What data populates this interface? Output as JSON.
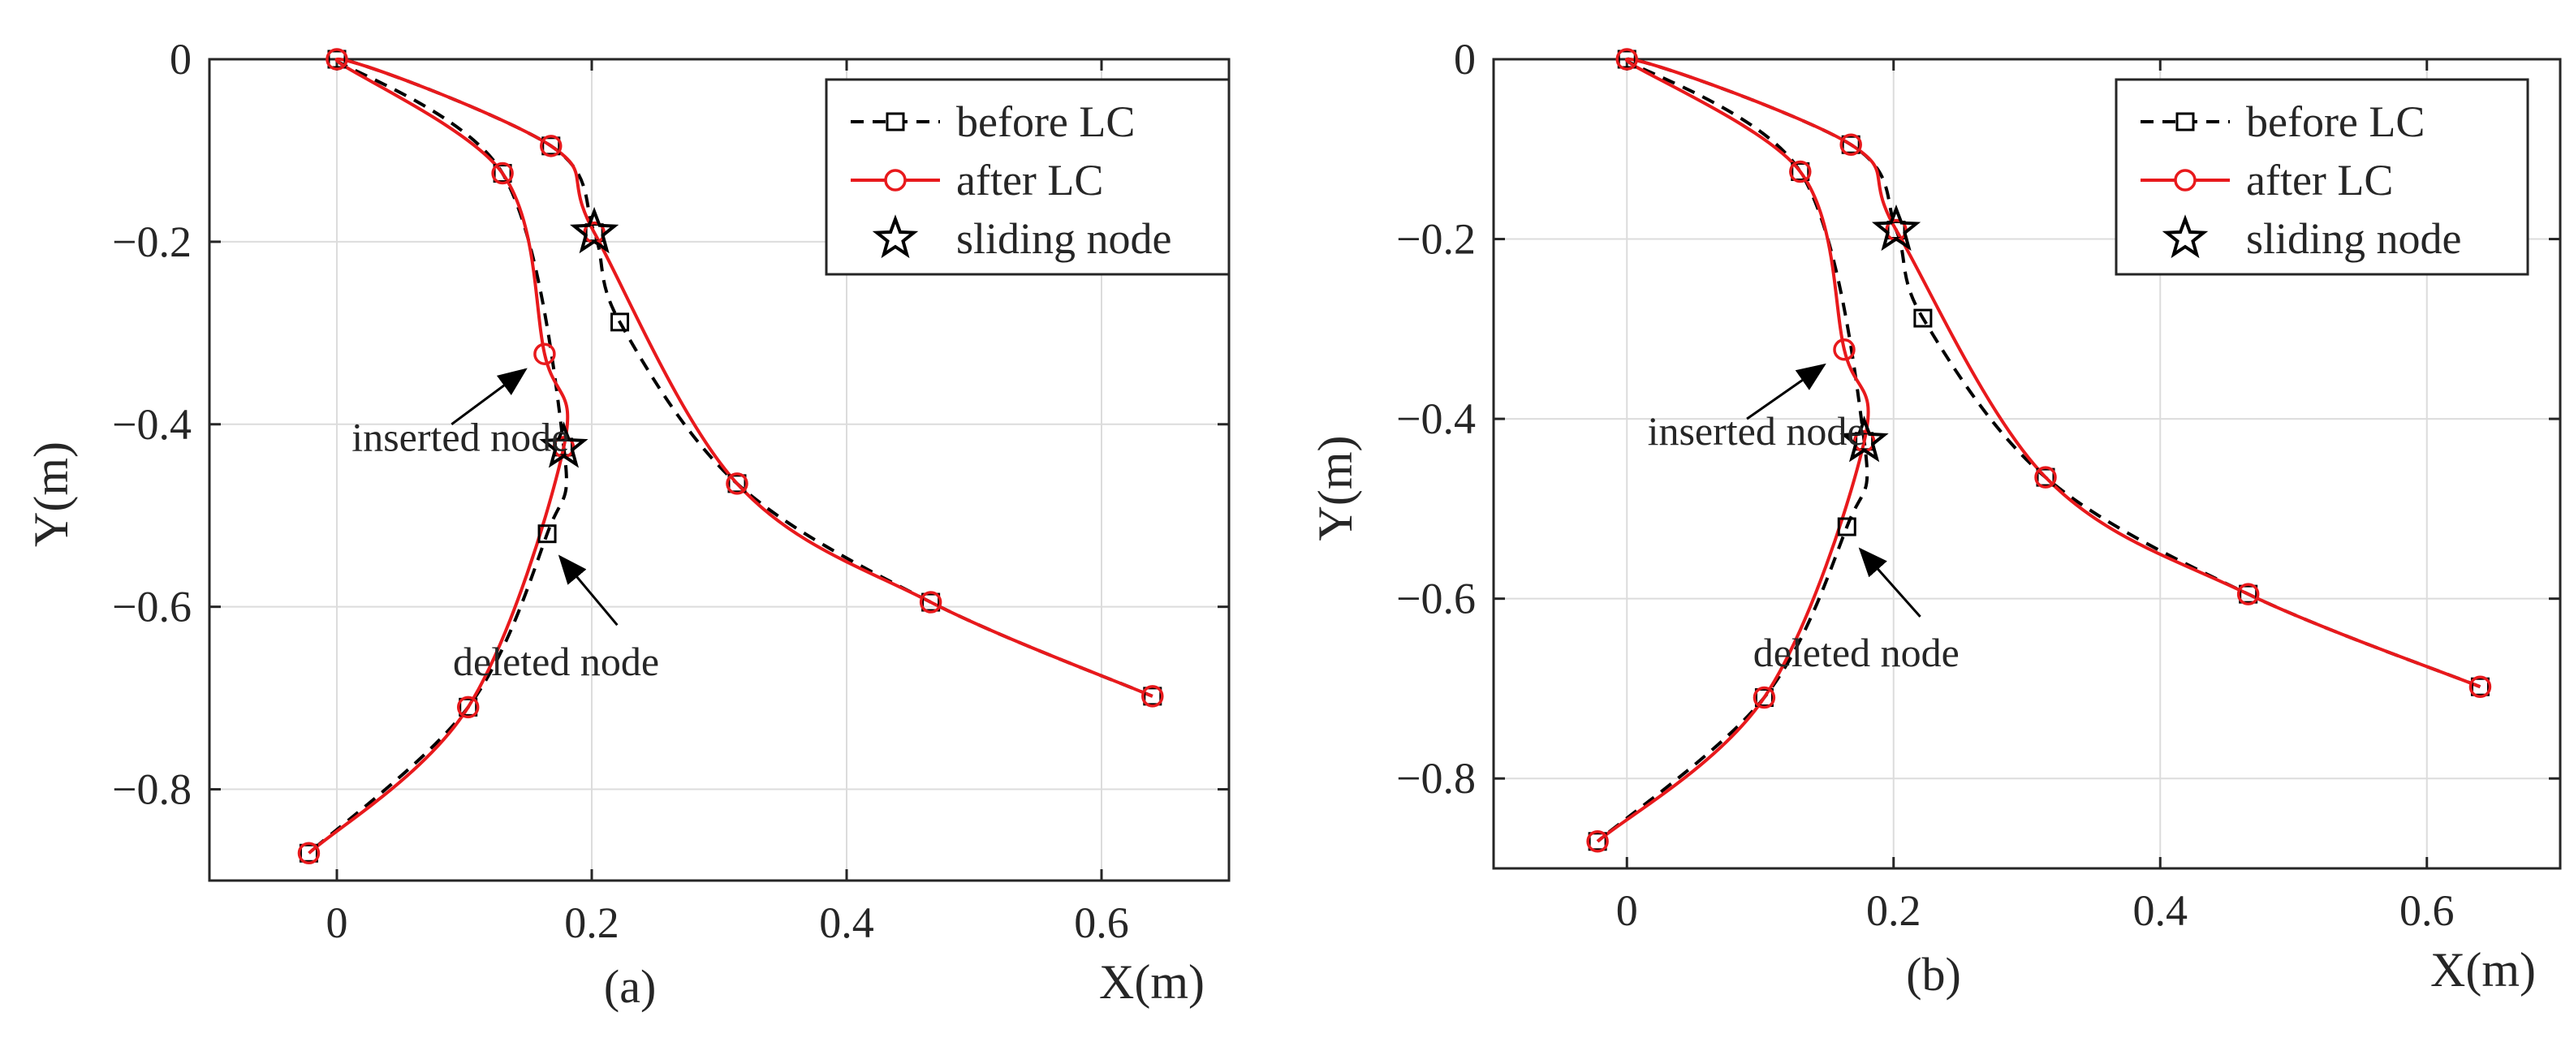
{
  "chart_data": [
    {
      "type": "line",
      "panel_label": "(a)",
      "xlabel": "X(m)",
      "ylabel": "Y(m)",
      "xlim": [
        -0.1,
        0.7
      ],
      "ylim": [
        -0.9,
        0
      ],
      "grid": true,
      "x_ticks": [
        0,
        0.2,
        0.4,
        0.6
      ],
      "x_tick_labels": [
        "0",
        "0.2",
        "0.4",
        "0.6"
      ],
      "y_ticks": [
        0,
        -0.2,
        -0.4,
        -0.6,
        -0.8
      ],
      "y_tick_labels": [
        "0",
        "−0.2",
        "−0.4",
        "−0.6",
        "−0.8"
      ],
      "legend_position": "top-right",
      "legend": [
        "before LC",
        "after LC",
        "sliding node"
      ],
      "series": [
        {
          "name": "before LC",
          "style": "dashed",
          "marker": "square",
          "color": "#000000",
          "points": [
            [
              0.64,
              -0.698
            ],
            [
              0.466,
              -0.595
            ],
            [
              0.314,
              -0.465
            ],
            [
              0.222,
              -0.288
            ],
            [
              0.202,
              -0.19
            ],
            [
              0.168,
              -0.095
            ],
            [
              0,
              0
            ],
            [
              0.13,
              -0.125
            ],
            [
              0.178,
              -0.425
            ],
            [
              0.165,
              -0.52
            ],
            [
              0.103,
              -0.71
            ],
            [
              -0.022,
              -0.87
            ]
          ]
        },
        {
          "name": "after LC",
          "style": "solid",
          "marker": "circle",
          "color": "#e8191c",
          "points": [
            [
              0.64,
              -0.698
            ],
            [
              0.466,
              -0.595
            ],
            [
              0.314,
              -0.465
            ],
            [
              0.202,
              -0.19
            ],
            [
              0.168,
              -0.095
            ],
            [
              0,
              0
            ],
            [
              0.13,
              -0.125
            ],
            [
              0.163,
              -0.323
            ],
            [
              0.178,
              -0.425
            ],
            [
              0.103,
              -0.71
            ],
            [
              -0.022,
              -0.87
            ]
          ]
        },
        {
          "name": "sliding node",
          "style": "none",
          "marker": "star",
          "color": "#000000",
          "points": [
            [
              0.202,
              -0.19
            ],
            [
              0.178,
              -0.425
            ]
          ]
        }
      ],
      "annotations": [
        {
          "text": "inserted node",
          "x": 0.097,
          "y": -0.429,
          "arrow_tip": [
            0.148,
            -0.34
          ],
          "arrow_tail": [
            0.09,
            -0.4
          ]
        },
        {
          "text": "deleted node",
          "x": 0.172,
          "y": -0.675,
          "arrow_tip": [
            0.175,
            -0.545
          ],
          "arrow_tail": [
            0.22,
            -0.62
          ]
        }
      ]
    },
    {
      "type": "line",
      "panel_label": "(b)",
      "xlabel": "X(m)",
      "ylabel": "Y(m)",
      "xlim": [
        -0.1,
        0.7
      ],
      "ylim": [
        -0.9,
        0
      ],
      "grid": true,
      "x_ticks": [
        0,
        0.2,
        0.4,
        0.6
      ],
      "x_tick_labels": [
        "0",
        "0.2",
        "0.4",
        "0.6"
      ],
      "y_ticks": [
        0,
        -0.2,
        -0.4,
        -0.6,
        -0.8
      ],
      "y_tick_labels": [
        "0",
        "−0.2",
        "−0.4",
        "−0.6",
        "−0.8"
      ],
      "legend_position": "top-right",
      "legend": [
        "before LC",
        "after LC",
        "sliding node"
      ],
      "series": [
        {
          "name": "before LC",
          "style": "dashed",
          "marker": "square",
          "color": "#000000",
          "points": [
            [
              0.64,
              -0.698
            ],
            [
              0.466,
              -0.595
            ],
            [
              0.314,
              -0.465
            ],
            [
              0.222,
              -0.288
            ],
            [
              0.202,
              -0.19
            ],
            [
              0.168,
              -0.095
            ],
            [
              0,
              0
            ],
            [
              0.13,
              -0.125
            ],
            [
              0.178,
              -0.425
            ],
            [
              0.165,
              -0.52
            ],
            [
              0.103,
              -0.71
            ],
            [
              -0.022,
              -0.87
            ]
          ]
        },
        {
          "name": "after LC",
          "style": "solid",
          "marker": "circle",
          "color": "#e8191c",
          "points": [
            [
              0.64,
              -0.698
            ],
            [
              0.466,
              -0.595
            ],
            [
              0.314,
              -0.465
            ],
            [
              0.202,
              -0.19
            ],
            [
              0.168,
              -0.095
            ],
            [
              0,
              0
            ],
            [
              0.13,
              -0.125
            ],
            [
              0.163,
              -0.323
            ],
            [
              0.178,
              -0.425
            ],
            [
              0.103,
              -0.71
            ],
            [
              -0.022,
              -0.87
            ]
          ]
        },
        {
          "name": "sliding node",
          "style": "none",
          "marker": "star",
          "color": "#000000",
          "points": [
            [
              0.202,
              -0.19
            ],
            [
              0.178,
              -0.425
            ]
          ]
        }
      ],
      "annotations": [
        {
          "text": "inserted node",
          "x": 0.097,
          "y": -0.429,
          "arrow_tip": [
            0.148,
            -0.34
          ],
          "arrow_tail": [
            0.09,
            -0.4
          ]
        },
        {
          "text": "deleted node",
          "x": 0.172,
          "y": -0.675,
          "arrow_tip": [
            0.175,
            -0.545
          ],
          "arrow_tail": [
            0.22,
            -0.62
          ]
        }
      ]
    }
  ]
}
